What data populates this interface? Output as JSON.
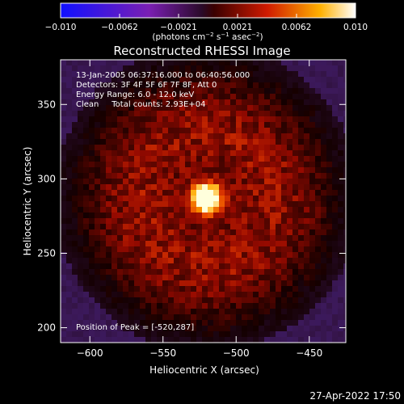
{
  "chart_data": {
    "type": "heatmap",
    "title": "Reconstructed RHESSI Image",
    "colorbar": {
      "ticks": [
        "−0.010",
        "−0.0062",
        "−0.0021",
        "0.0021",
        "0.0062",
        "0.010"
      ],
      "min": -0.01,
      "max": 0.01,
      "label_parts": [
        "(photons cm",
        "−2",
        " s",
        "−1",
        " asec",
        "−2",
        ")"
      ]
    },
    "xlabel": "Heliocentric X (arcsec)",
    "ylabel": "Heliocentric Y (arcsec)",
    "xlim": [
      -620,
      -425
    ],
    "ylim": [
      190,
      380
    ],
    "xticks": [
      {
        "value": -600,
        "label": "−600"
      },
      {
        "value": -550,
        "label": "−550"
      },
      {
        "value": -500,
        "label": "−500"
      },
      {
        "value": -450,
        "label": "−450"
      }
    ],
    "yticks": [
      {
        "value": 200,
        "label": "200"
      },
      {
        "value": 250,
        "label": "250"
      },
      {
        "value": 300,
        "label": "300"
      },
      {
        "value": 350,
        "label": "350"
      }
    ],
    "annotations": [
      "13-Jan-2005 06:37:16.000 to 06:40:56.000",
      "Detectors: 3F 4F 5F 6F 7F 8F, Att 0",
      "Energy Range: 6.0 - 12.0 keV",
      "Clean     Total counts: 2.93E+04"
    ],
    "peak_label": "Position of Peak = [-520,287]",
    "peak": [
      -520,
      287
    ],
    "colors": {
      "background": "#000000",
      "text": "#ffffff"
    }
  },
  "timestamp": "27-Apr-2022 17:50"
}
